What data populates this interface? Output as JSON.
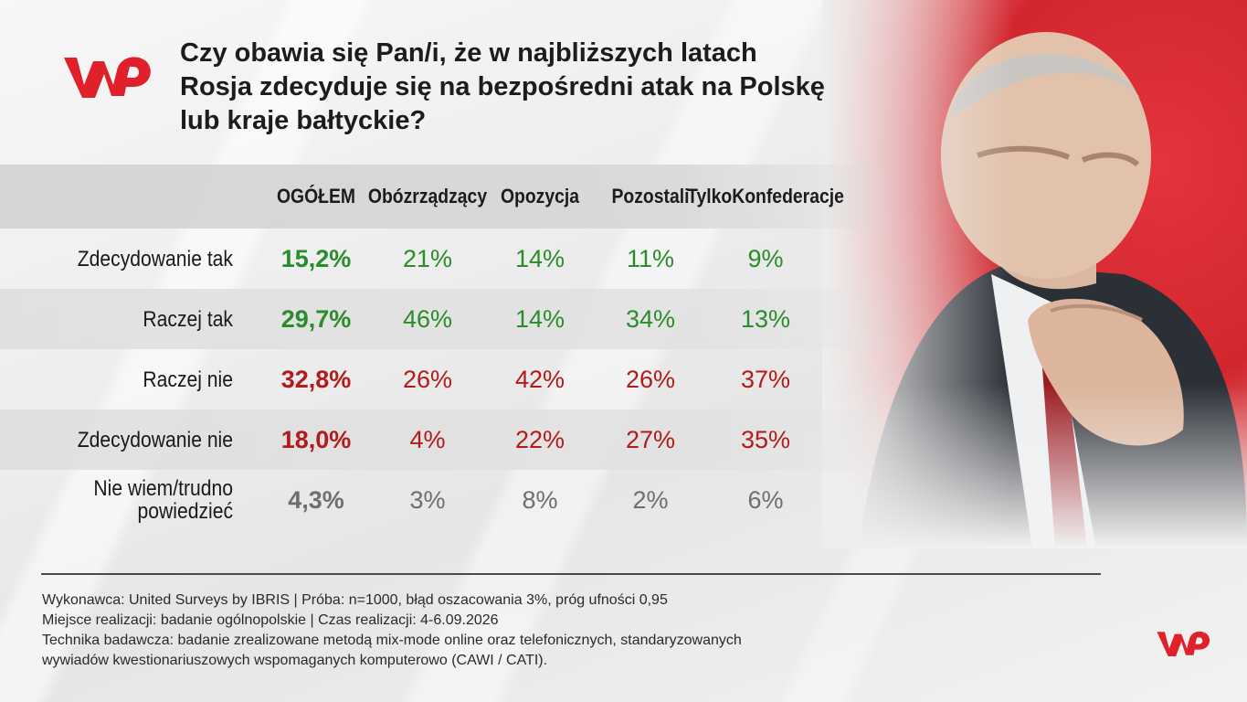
{
  "title_lines": [
    "Czy obawia się Pan/i, że w najbliższych latach",
    "Rosja zdecyduje się na bezpośredni atak na Polskę",
    "lub kraje bałtyckie?"
  ],
  "logo_text": "WP",
  "colors": {
    "positive": "#2a8c2a",
    "negative": "#b31b1b",
    "neutral": "#6e6e6e",
    "brand": "#e0212b"
  },
  "chart_data": {
    "type": "table",
    "columns": [
      "OGÓŁEM",
      "Obóz rządzący",
      "Opozycja",
      "Pozostali",
      "Tylko Konfederacje"
    ],
    "column_lines": [
      [
        "OGÓŁEM"
      ],
      [
        "Obóz",
        "rządzący"
      ],
      [
        "Opozycja"
      ],
      [
        "Pozostali"
      ],
      [
        "Tylko",
        "Konfederacje"
      ]
    ],
    "rows": [
      {
        "label": [
          "Zdecydowanie tak"
        ],
        "tone": "positive",
        "values": [
          "15,2%",
          "21%",
          "14%",
          "11%",
          "9%"
        ]
      },
      {
        "label": [
          "Raczej tak"
        ],
        "tone": "positive",
        "values": [
          "29,7%",
          "46%",
          "14%",
          "34%",
          "13%"
        ]
      },
      {
        "label": [
          "Raczej nie"
        ],
        "tone": "negative",
        "values": [
          "32,8%",
          "26%",
          "42%",
          "26%",
          "37%"
        ]
      },
      {
        "label": [
          "Zdecydowanie nie"
        ],
        "tone": "negative",
        "values": [
          "18,0%",
          "4%",
          "22%",
          "27%",
          "35%"
        ]
      },
      {
        "label": [
          "Nie wiem/trudno",
          "powiedzieć"
        ],
        "tone": "neutral",
        "values": [
          "4,3%",
          "3%",
          "8%",
          "2%",
          "6%"
        ]
      }
    ]
  },
  "notes": [
    "Wykonawca: United Surveys by IBRIS | Próba: n=1000, błąd oszacowania 3%, próg ufności 0,95",
    "Miejsce realizacji: badanie ogólnopolskie | Czas realizacji: 4-6.09.2026",
    "Technika badawcza: badanie zrealizowane metodą mix-mode online oraz telefonicznych, standaryzowanych",
    "wywiadów kwestionariuszowych wspomaganych komputerowo (CAWI / CATI)."
  ]
}
